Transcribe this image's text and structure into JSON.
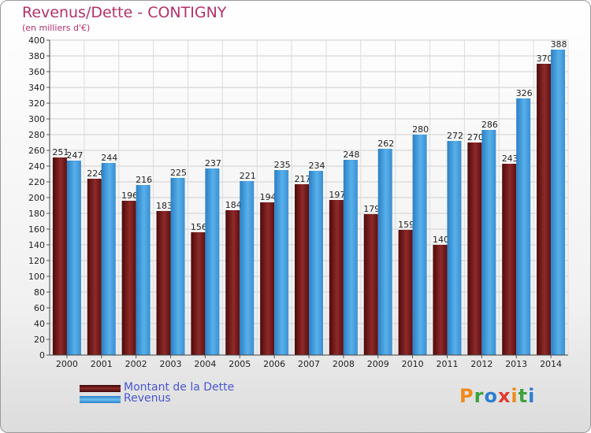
{
  "chart_data": {
    "type": "bar",
    "title": "Revenus/Dette - CONTIGNY",
    "subtitle": "(en milliers d'€)",
    "categories": [
      "2000",
      "2001",
      "2002",
      "2003",
      "2004",
      "2005",
      "2006",
      "2007",
      "2008",
      "2009",
      "2010",
      "2011",
      "2012",
      "2013",
      "2014"
    ],
    "series": [
      {
        "name": "Montant de la Dette",
        "color": "#7a1a1a",
        "values": [
          251,
          224,
          196,
          183,
          156,
          184,
          194,
          217,
          197,
          179,
          159,
          140,
          270,
          243,
          370
        ]
      },
      {
        "name": "Revenus",
        "color": "#3d9ad9",
        "values": [
          247,
          244,
          216,
          225,
          237,
          221,
          235,
          234,
          248,
          262,
          280,
          272,
          286,
          326,
          388
        ]
      }
    ],
    "ylim": [
      0,
      400
    ],
    "yticks": [
      0,
      20,
      40,
      60,
      80,
      100,
      120,
      140,
      160,
      180,
      200,
      220,
      240,
      260,
      280,
      300,
      320,
      340,
      360,
      380,
      400
    ],
    "grid": true,
    "legend": "bottom-left"
  },
  "logo": {
    "text": "Proxiti"
  }
}
